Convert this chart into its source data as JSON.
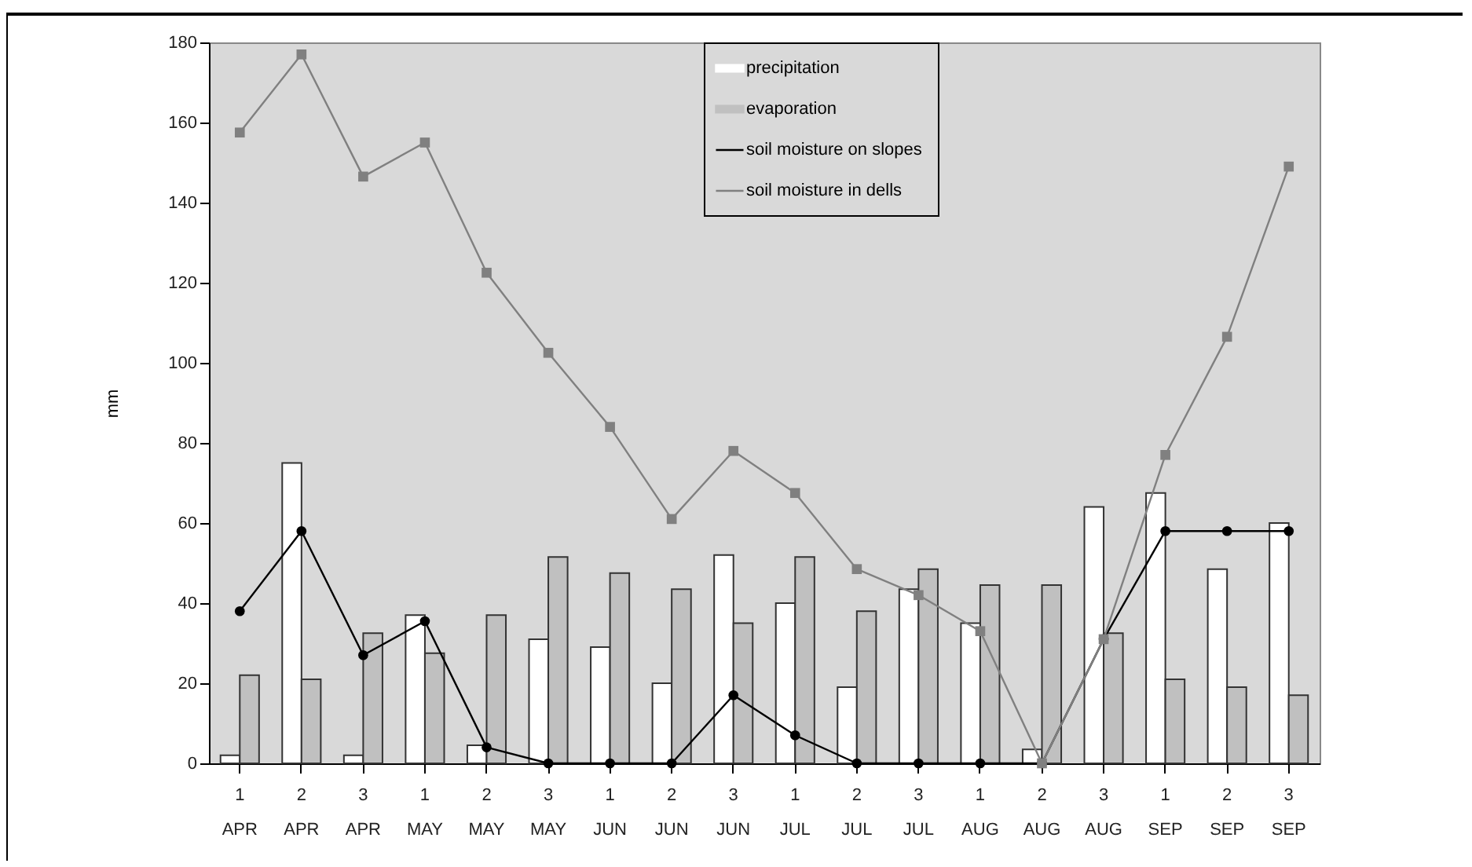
{
  "chart_data": {
    "type": "bar",
    "ylabel": "mm",
    "categories": [
      "1 APR",
      "2 APR",
      "3 APR",
      "1 MAY",
      "2 MAY",
      "3 MAY",
      "1 JUN",
      "2 JUN",
      "3 JUN",
      "1 JUL",
      "2 JUL",
      "3 JUL",
      "1 AUG",
      "2 AUG",
      "3 AUG",
      "1 SEP",
      "2 SEP",
      "3 SEP"
    ],
    "series": [
      {
        "name": "precipitation",
        "color": "#ffffff",
        "values": [
          2,
          75,
          2,
          37,
          4.5,
          31,
          29,
          20,
          52,
          40,
          19,
          43.5,
          35,
          3.5,
          64,
          67.5,
          48.5,
          60
        ]
      },
      {
        "name": "evaporation",
        "color": "#c0c0c0",
        "values": [
          22,
          21,
          32.5,
          27.5,
          37,
          51.5,
          47.5,
          43.5,
          35,
          51.5,
          38,
          48.5,
          44.5,
          44.5,
          32.5,
          21,
          19,
          17
        ]
      },
      {
        "name": "soil moisture on slopes",
        "type": "line",
        "color": "#000000",
        "marker": "circle",
        "values": [
          38,
          58,
          27,
          35.5,
          4,
          0,
          0,
          0,
          17,
          7,
          0,
          0,
          0,
          0,
          31,
          58,
          58,
          58
        ]
      },
      {
        "name": "soil moisture in dells",
        "type": "line",
        "color": "#808080",
        "marker": "square",
        "values": [
          157.5,
          177,
          146.5,
          155,
          122.5,
          102.5,
          84,
          61,
          78,
          67.5,
          48.5,
          42,
          33,
          0,
          31,
          77,
          106.5,
          149
        ]
      }
    ],
    "ylim": [
      0,
      180
    ],
    "yticks": [
      0,
      20,
      40,
      60,
      80,
      100,
      120,
      140,
      160,
      180
    ],
    "grid": false,
    "legend": "top"
  }
}
